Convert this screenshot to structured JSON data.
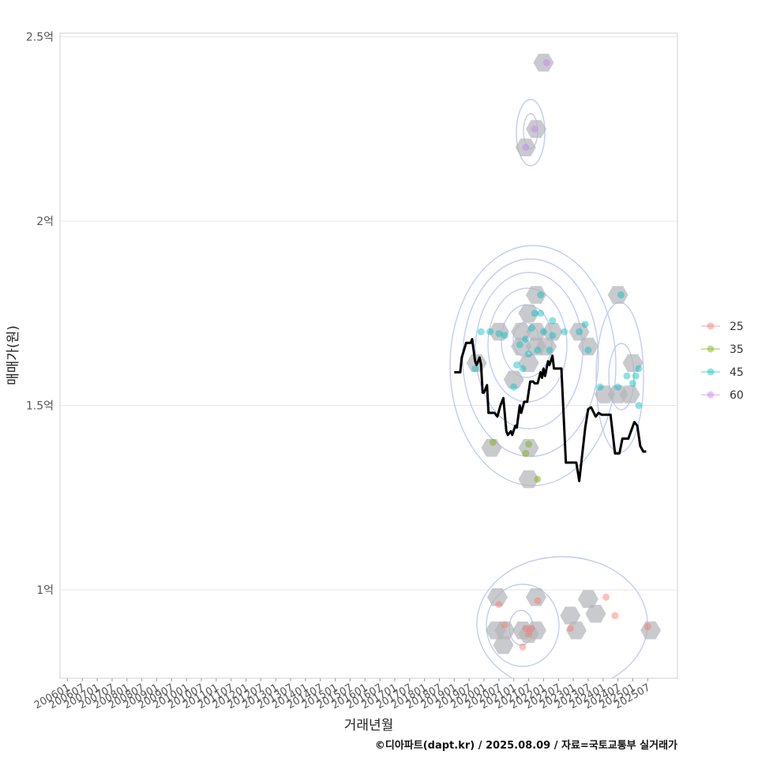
{
  "chart_data": {
    "type": "scatter",
    "title": "",
    "xlabel": "거래년월",
    "ylabel": "매매가(원)",
    "x_tick_labels": [
      "200601",
      "200607",
      "200701",
      "200707",
      "200801",
      "200807",
      "200901",
      "200907",
      "201001",
      "201007",
      "201101",
      "201107",
      "201201",
      "201207",
      "201301",
      "201307",
      "201401",
      "201407",
      "201501",
      "201507",
      "201601",
      "201607",
      "201701",
      "201707",
      "201801",
      "201807",
      "201901",
      "201907",
      "202001",
      "202007",
      "202101",
      "202107",
      "202201",
      "202207",
      "202301",
      "202307",
      "202401",
      "202407",
      "202501",
      "202507"
    ],
    "y_ticks": [
      {
        "value": 1.0,
        "label": "1억"
      },
      {
        "value": 1.5,
        "label": "1.5억"
      },
      {
        "value": 2.0,
        "label": "2억"
      },
      {
        "value": 2.5,
        "label": "2.5억"
      }
    ],
    "xlim": [
      2005.75,
      2026.5
    ],
    "ylim": [
      0.76,
      2.51
    ],
    "units": "억원",
    "legend": {
      "position": "right",
      "entries": [
        {
          "label": "25",
          "color": "#f8766d"
        },
        {
          "label": "35",
          "color": "#7cae00"
        },
        {
          "label": "45",
          "color": "#00bfc4"
        },
        {
          "label": "60",
          "color": "#c77cff"
        }
      ]
    },
    "series": [
      {
        "name": "25",
        "color": "#f8766d",
        "points": [
          [
            2020.5,
            0.96
          ],
          [
            2020.7,
            0.905
          ],
          [
            2021.3,
            0.845
          ],
          [
            2021.4,
            0.895
          ],
          [
            2021.5,
            0.88
          ],
          [
            2021.6,
            0.895
          ],
          [
            2021.8,
            0.97
          ],
          [
            2022.9,
            0.895
          ],
          [
            2024.1,
            0.98
          ],
          [
            2024.4,
            0.93
          ],
          [
            2025.5,
            0.9
          ]
        ]
      },
      {
        "name": "35",
        "color": "#7cae00",
        "points": [
          [
            2020.3,
            1.4
          ],
          [
            2021.4,
            1.37
          ],
          [
            2021.5,
            1.395
          ],
          [
            2021.8,
            1.3
          ]
        ]
      },
      {
        "name": "45",
        "color": "#00bfc4",
        "points": [
          [
            2019.7,
            1.6
          ],
          [
            2019.9,
            1.7
          ],
          [
            2020.2,
            1.7
          ],
          [
            2020.5,
            1.695
          ],
          [
            2020.7,
            1.69
          ],
          [
            2021.0,
            1.55
          ],
          [
            2021.1,
            1.61
          ],
          [
            2021.2,
            1.665
          ],
          [
            2021.3,
            1.6
          ],
          [
            2021.4,
            1.68
          ],
          [
            2021.5,
            1.64
          ],
          [
            2021.6,
            1.71
          ],
          [
            2021.7,
            1.75
          ],
          [
            2021.8,
            1.65
          ],
          [
            2021.9,
            1.75
          ],
          [
            2021.9,
            1.8
          ],
          [
            2022.0,
            1.7
          ],
          [
            2022.2,
            1.65
          ],
          [
            2022.3,
            1.69
          ],
          [
            2022.3,
            1.73
          ],
          [
            2022.7,
            1.7
          ],
          [
            2023.2,
            1.7
          ],
          [
            2023.4,
            1.72
          ],
          [
            2023.5,
            1.65
          ],
          [
            2023.9,
            1.55
          ],
          [
            2024.6,
            1.8
          ],
          [
            2024.5,
            1.55
          ],
          [
            2024.8,
            1.58
          ],
          [
            2025.0,
            1.56
          ],
          [
            2025.1,
            1.58
          ],
          [
            2025.2,
            1.6
          ],
          [
            2025.2,
            1.5
          ]
        ]
      },
      {
        "name": "60",
        "color": "#c77cff",
        "points": [
          [
            2021.4,
            2.2
          ],
          [
            2021.7,
            2.25
          ],
          [
            2022.1,
            2.43
          ]
        ]
      }
    ],
    "median_line": {
      "color": "#000000",
      "x": [
        2019.0,
        2019.2,
        2019.25,
        2019.4,
        2019.55,
        2019.6,
        2019.7,
        2019.75,
        2019.85,
        2019.9,
        2019.95,
        2020.0,
        2020.1,
        2020.15,
        2020.25,
        2020.35,
        2020.45,
        2020.55,
        2020.65,
        2020.75,
        2020.8,
        2020.9,
        2020.95,
        2021.05,
        2021.1,
        2021.2,
        2021.25,
        2021.35,
        2021.45,
        2021.55,
        2021.65,
        2021.7,
        2021.8,
        2021.9,
        2021.95,
        2022.0,
        2022.05,
        2022.15,
        2022.2,
        2022.3,
        2022.35,
        2022.45,
        2022.55,
        2022.6,
        2022.75,
        2023.1,
        2023.2,
        2023.4,
        2023.5,
        2023.6,
        2023.75,
        2023.85,
        2023.95,
        2024.1,
        2024.25,
        2024.4,
        2024.55,
        2024.65,
        2024.75,
        2024.85,
        2025.05,
        2025.15,
        2025.25,
        2025.35,
        2025.45
      ],
      "y": [
        1.59,
        1.59,
        1.63,
        1.67,
        1.67,
        1.68,
        1.62,
        1.61,
        1.63,
        1.61,
        1.535,
        1.535,
        1.555,
        1.48,
        1.48,
        1.48,
        1.47,
        1.5,
        1.52,
        1.43,
        1.42,
        1.43,
        1.42,
        1.445,
        1.44,
        1.5,
        1.48,
        1.51,
        1.51,
        1.565,
        1.565,
        1.56,
        1.56,
        1.59,
        1.575,
        1.6,
        1.58,
        1.62,
        1.61,
        1.635,
        1.6,
        1.6,
        1.6,
        1.6,
        1.345,
        1.345,
        1.295,
        1.44,
        1.49,
        1.495,
        1.47,
        1.48,
        1.475,
        1.475,
        1.475,
        1.37,
        1.37,
        1.41,
        1.41,
        1.41,
        1.455,
        1.445,
        1.39,
        1.375,
        1.375
      ]
    },
    "hex_bins": [
      [
        2019.75,
        1.615
      ],
      [
        2021.0,
        1.57
      ],
      [
        2021.5,
        1.615
      ],
      [
        2021.25,
        1.66
      ],
      [
        2021.75,
        1.66
      ],
      [
        2022.1,
        1.66
      ],
      [
        2021.25,
        1.7
      ],
      [
        2021.75,
        1.7
      ],
      [
        2022.3,
        1.7
      ],
      [
        2020.5,
        1.7
      ],
      [
        2021.5,
        1.75
      ],
      [
        2021.75,
        1.8
      ],
      [
        2023.2,
        1.7
      ],
      [
        2023.5,
        1.66
      ],
      [
        2024.05,
        1.53
      ],
      [
        2024.5,
        1.53
      ],
      [
        2024.9,
        1.53
      ],
      [
        2025.0,
        1.615
      ],
      [
        2024.5,
        1.8
      ],
      [
        2020.25,
        1.385
      ],
      [
        2021.5,
        1.385
      ],
      [
        2021.5,
        1.3
      ],
      [
        2022.0,
        2.43
      ],
      [
        2021.75,
        2.25
      ],
      [
        2021.4,
        2.2
      ],
      [
        2020.45,
        0.98
      ],
      [
        2021.75,
        0.98
      ],
      [
        2023.5,
        0.975
      ],
      [
        2023.75,
        0.935
      ],
      [
        2022.9,
        0.93
      ],
      [
        2020.4,
        0.89
      ],
      [
        2020.7,
        0.89
      ],
      [
        2021.3,
        0.89
      ],
      [
        2021.75,
        0.89
      ],
      [
        2023.1,
        0.89
      ],
      [
        2025.6,
        0.89
      ],
      [
        2020.65,
        0.85
      ],
      [
        2021.5,
        0.88
      ]
    ]
  },
  "caption": "©디아파트(dapt.kr) / 2025.08.09 / 자료=국토교통부 실거래가"
}
